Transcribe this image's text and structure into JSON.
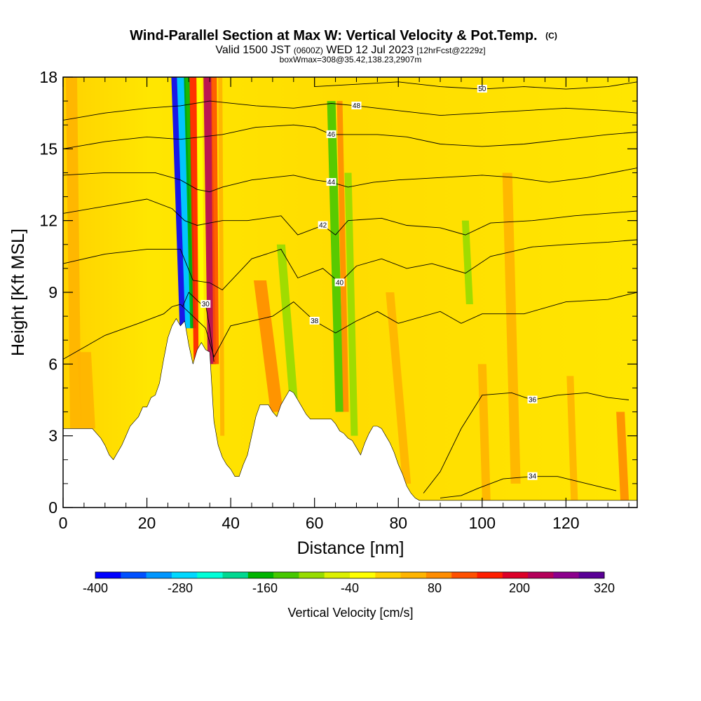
{
  "chart_data": {
    "type": "heatmap",
    "title": "Wind-Parallel Section at Max W: Vertical Velocity & Pot.Temp.",
    "title_mark": "(C)",
    "subtitle_parts": [
      "Valid 1500 JST ",
      "(0600Z)",
      " WED 12 Jul 2023 ",
      "[12hrFcst@2229z]"
    ],
    "subtitle2": "boxWmax=308@35.42,138.23,2907m",
    "xlabel": "Distance [nm]",
    "ylabel": "Height [Kft MSL]",
    "xlim": [
      0,
      137
    ],
    "ylim": [
      0,
      18
    ],
    "x_ticks": [
      0,
      20,
      40,
      60,
      80,
      100,
      120
    ],
    "y_ticks": [
      0,
      3,
      6,
      9,
      12,
      15,
      18
    ],
    "colorbar": {
      "label": "Vertical Velocity [cm/s]",
      "tick_labels": [
        "-400",
        "-280",
        "-160",
        "-40",
        "80",
        "200",
        "320"
      ],
      "colors": [
        "#0000ff",
        "#0050ff",
        "#0096ff",
        "#00d8ff",
        "#00ffd8",
        "#00d890",
        "#00b400",
        "#46c800",
        "#96dc00",
        "#dcf000",
        "#ffff00",
        "#ffd200",
        "#ffb400",
        "#ff8c00",
        "#ff5000",
        "#ff1e00",
        "#dc0028",
        "#b4005a",
        "#8c008c",
        "#5a0096"
      ]
    },
    "terrain": [
      [
        0,
        3.3
      ],
      [
        2,
        3.3
      ],
      [
        4,
        3.3
      ],
      [
        5,
        3.3
      ],
      [
        7,
        3.3
      ],
      [
        8,
        3.1
      ],
      [
        9,
        2.9
      ],
      [
        10,
        2.6
      ],
      [
        11,
        2.2
      ],
      [
        12,
        2.0
      ],
      [
        13,
        2.3
      ],
      [
        14,
        2.6
      ],
      [
        15,
        3.0
      ],
      [
        16,
        3.4
      ],
      [
        17,
        3.6
      ],
      [
        18,
        3.8
      ],
      [
        19,
        4.2
      ],
      [
        20,
        4.2
      ],
      [
        21,
        4.6
      ],
      [
        22,
        4.7
      ],
      [
        23,
        5.2
      ],
      [
        24,
        6.2
      ],
      [
        25,
        7.1
      ],
      [
        26,
        7.6
      ],
      [
        27,
        7.9
      ],
      [
        28,
        7.6
      ],
      [
        29,
        7.8
      ],
      [
        30,
        6.8
      ],
      [
        31,
        6.0
      ],
      [
        32,
        6.6
      ],
      [
        33,
        6.9
      ],
      [
        34,
        6.6
      ],
      [
        35,
        6.5
      ],
      [
        36,
        3.6
      ],
      [
        37,
        2.6
      ],
      [
        38,
        2.1
      ],
      [
        39,
        1.8
      ],
      [
        40,
        1.6
      ],
      [
        41,
        1.3
      ],
      [
        42,
        1.3
      ],
      [
        43,
        1.8
      ],
      [
        44,
        2.2
      ],
      [
        45,
        3.0
      ],
      [
        46,
        3.8
      ],
      [
        47,
        4.3
      ],
      [
        48,
        4.3
      ],
      [
        49,
        4.3
      ],
      [
        50,
        4.0
      ],
      [
        51,
        3.8
      ],
      [
        52,
        4.3
      ],
      [
        53,
        4.6
      ],
      [
        54,
        4.9
      ],
      [
        55,
        4.8
      ],
      [
        56,
        4.5
      ],
      [
        57,
        4.2
      ],
      [
        58,
        3.9
      ],
      [
        59,
        3.7
      ],
      [
        60,
        3.7
      ],
      [
        61,
        3.7
      ],
      [
        62,
        3.7
      ],
      [
        63,
        3.7
      ],
      [
        64,
        3.7
      ],
      [
        65,
        3.5
      ],
      [
        66,
        3.2
      ],
      [
        67,
        3.1
      ],
      [
        68,
        2.9
      ],
      [
        69,
        2.8
      ],
      [
        70,
        2.5
      ],
      [
        71,
        2.2
      ],
      [
        72,
        2.7
      ],
      [
        73,
        3.1
      ],
      [
        74,
        3.4
      ],
      [
        75,
        3.4
      ],
      [
        76,
        3.3
      ],
      [
        77,
        3.0
      ],
      [
        78,
        2.7
      ],
      [
        79,
        2.3
      ],
      [
        80,
        1.8
      ],
      [
        81,
        1.4
      ],
      [
        82,
        0.9
      ],
      [
        83,
        0.6
      ],
      [
        84,
        0.4
      ],
      [
        85,
        0.3
      ],
      [
        137,
        0.3
      ]
    ],
    "potential_temperature_contours": [
      {
        "label": "30",
        "points": [
          [
            28.5,
            8.4
          ],
          [
            30,
            9.0
          ],
          [
            33,
            8.5
          ],
          [
            34,
            8.5
          ],
          [
            35,
            7.5
          ],
          [
            36,
            6.1
          ]
        ]
      },
      {
        "label": "34",
        "points": [
          [
            90,
            0.4
          ],
          [
            95,
            0.5
          ],
          [
            99,
            0.8
          ],
          [
            105,
            1.2
          ],
          [
            112,
            1.3
          ],
          [
            118,
            1.3
          ],
          [
            125,
            1.0
          ],
          [
            132,
            0.7
          ]
        ]
      },
      {
        "label": "36",
        "points": [
          [
            86,
            0.6
          ],
          [
            90,
            1.5
          ],
          [
            95,
            3.3
          ],
          [
            100,
            4.7
          ],
          [
            107,
            4.8
          ],
          [
            112,
            4.5
          ],
          [
            118,
            4.7
          ],
          [
            125,
            4.8
          ],
          [
            130,
            4.6
          ],
          [
            135,
            4.5
          ]
        ]
      },
      {
        "label": "38",
        "points": [
          [
            0,
            6.2
          ],
          [
            10,
            7.2
          ],
          [
            18,
            7.7
          ],
          [
            24,
            8.1
          ],
          [
            26,
            8.4
          ],
          [
            28,
            8.5
          ],
          [
            34,
            7.5
          ],
          [
            36,
            6.3
          ],
          [
            40,
            7.6
          ],
          [
            45,
            7.8
          ],
          [
            50,
            8.0
          ],
          [
            55,
            8.6
          ],
          [
            60,
            7.8
          ],
          [
            65,
            7.3
          ],
          [
            70,
            7.8
          ],
          [
            75,
            8.2
          ],
          [
            80,
            7.7
          ],
          [
            90,
            8.2
          ],
          [
            95,
            7.7
          ],
          [
            100,
            8.1
          ],
          [
            110,
            8.1
          ],
          [
            120,
            8.6
          ],
          [
            130,
            8.7
          ],
          [
            137,
            9.0
          ]
        ]
      },
      {
        "label": "40",
        "points": [
          [
            0,
            10.2
          ],
          [
            10,
            10.6
          ],
          [
            20,
            10.8
          ],
          [
            28,
            10.8
          ],
          [
            31,
            9.5
          ],
          [
            35,
            9.4
          ],
          [
            38,
            9.1
          ],
          [
            45,
            10.4
          ],
          [
            52,
            10.8
          ],
          [
            56,
            9.6
          ],
          [
            62,
            10.0
          ],
          [
            66,
            9.4
          ],
          [
            70,
            10.1
          ],
          [
            76,
            10.4
          ],
          [
            82,
            10.0
          ],
          [
            88,
            10.2
          ],
          [
            96,
            9.8
          ],
          [
            102,
            10.5
          ],
          [
            112,
            10.9
          ],
          [
            120,
            11.0
          ],
          [
            130,
            11.1
          ],
          [
            137,
            11.2
          ]
        ]
      },
      {
        "label": "42",
        "points": [
          [
            0,
            12.3
          ],
          [
            10,
            12.6
          ],
          [
            20,
            12.9
          ],
          [
            26,
            12.5
          ],
          [
            29,
            12.0
          ],
          [
            32,
            11.8
          ],
          [
            35,
            11.9
          ],
          [
            38,
            12.0
          ],
          [
            44,
            12.0
          ],
          [
            52,
            12.2
          ],
          [
            56,
            11.4
          ],
          [
            62,
            11.8
          ],
          [
            65,
            11.4
          ],
          [
            68,
            12.0
          ],
          [
            76,
            12.1
          ],
          [
            82,
            11.8
          ],
          [
            90,
            11.7
          ],
          [
            96,
            11.4
          ],
          [
            102,
            11.9
          ],
          [
            112,
            12.0
          ],
          [
            122,
            12.2
          ],
          [
            137,
            12.4
          ]
        ]
      },
      {
        "label": "44",
        "points": [
          [
            0,
            13.9
          ],
          [
            10,
            14.0
          ],
          [
            22,
            14.0
          ],
          [
            28,
            13.7
          ],
          [
            32,
            13.3
          ],
          [
            35,
            13.2
          ],
          [
            38,
            13.4
          ],
          [
            45,
            13.7
          ],
          [
            55,
            13.9
          ],
          [
            60,
            13.7
          ],
          [
            64,
            13.6
          ],
          [
            68,
            13.4
          ],
          [
            74,
            13.6
          ],
          [
            80,
            13.7
          ],
          [
            90,
            13.8
          ],
          [
            100,
            13.9
          ],
          [
            108,
            13.8
          ],
          [
            116,
            13.6
          ],
          [
            125,
            13.8
          ],
          [
            137,
            14.2
          ]
        ]
      },
      {
        "label": "46",
        "points": [
          [
            0,
            15.0
          ],
          [
            10,
            15.3
          ],
          [
            20,
            15.5
          ],
          [
            28,
            15.4
          ],
          [
            33,
            15.5
          ],
          [
            38,
            15.6
          ],
          [
            46,
            15.9
          ],
          [
            55,
            16.0
          ],
          [
            60,
            15.9
          ],
          [
            64,
            15.6
          ],
          [
            68,
            15.6
          ],
          [
            75,
            15.6
          ],
          [
            82,
            15.5
          ],
          [
            90,
            15.2
          ],
          [
            100,
            15.1
          ],
          [
            110,
            15.2
          ],
          [
            120,
            15.4
          ],
          [
            130,
            15.6
          ],
          [
            137,
            15.7
          ]
        ]
      },
      {
        "label": "48",
        "points": [
          [
            0,
            16.2
          ],
          [
            10,
            16.5
          ],
          [
            20,
            16.7
          ],
          [
            28,
            16.8
          ],
          [
            35,
            17.0
          ],
          [
            46,
            16.8
          ],
          [
            55,
            16.7
          ],
          [
            64,
            16.9
          ],
          [
            70,
            16.8
          ],
          [
            80,
            16.6
          ],
          [
            90,
            16.4
          ],
          [
            100,
            16.5
          ],
          [
            110,
            16.6
          ],
          [
            120,
            16.7
          ],
          [
            130,
            16.6
          ],
          [
            137,
            16.5
          ]
        ]
      },
      {
        "label": "50",
        "points": [
          [
            60,
            17.6
          ],
          [
            70,
            17.7
          ],
          [
            80,
            17.8
          ],
          [
            90,
            17.6
          ],
          [
            100,
            17.5
          ],
          [
            110,
            17.6
          ],
          [
            120,
            17.5
          ],
          [
            130,
            17.6
          ],
          [
            137,
            17.8
          ]
        ]
      }
    ]
  }
}
